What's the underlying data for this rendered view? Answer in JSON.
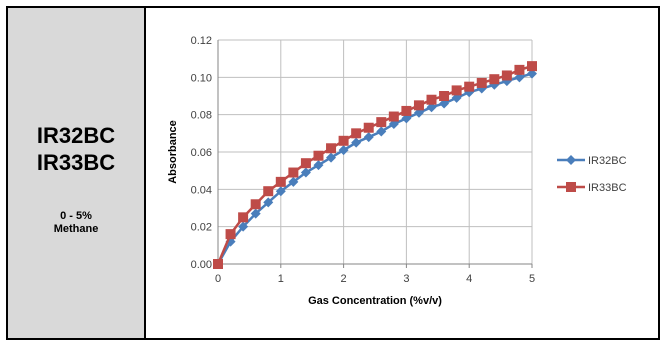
{
  "sidebar": {
    "model_line1": "IR32BC",
    "model_line2": "IR33BC",
    "range_line1": "0 - 5%",
    "range_line2": "Methane"
  },
  "colors": {
    "sidebar_bg": "#d9d9d9",
    "series_ir32bc": "#4a7ebb",
    "series_ir33bc": "#be4b48",
    "gridline": "#bfbfbf"
  },
  "chart_data": {
    "type": "line",
    "xlabel": "Gas Concentration (%v/v)",
    "ylabel": "Absorbance",
    "xlim": [
      0,
      5
    ],
    "ylim": [
      0,
      0.12
    ],
    "xticks": [
      "0",
      "1",
      "2",
      "3",
      "4",
      "5"
    ],
    "yticks": [
      "0.00",
      "0.02",
      "0.04",
      "0.06",
      "0.08",
      "0.10",
      "0.12"
    ],
    "grid": true,
    "legend_position": "right",
    "x": [
      0,
      0.2,
      0.4,
      0.6,
      0.8,
      1.0,
      1.2,
      1.4,
      1.6,
      1.8,
      2.0,
      2.2,
      2.4,
      2.6,
      2.8,
      3.0,
      3.2,
      3.4,
      3.6,
      3.8,
      4.0,
      4.2,
      4.4,
      4.6,
      4.8,
      5.0
    ],
    "series": [
      {
        "name": "IR32BC",
        "marker": "diamond",
        "values": [
          0.0,
          0.012,
          0.02,
          0.027,
          0.033,
          0.039,
          0.044,
          0.049,
          0.053,
          0.057,
          0.061,
          0.065,
          0.068,
          0.071,
          0.075,
          0.078,
          0.081,
          0.084,
          0.086,
          0.089,
          0.092,
          0.094,
          0.096,
          0.098,
          0.1,
          0.102
        ]
      },
      {
        "name": "IR33BC",
        "marker": "square",
        "values": [
          0.0,
          0.016,
          0.025,
          0.032,
          0.039,
          0.044,
          0.049,
          0.054,
          0.058,
          0.062,
          0.066,
          0.07,
          0.073,
          0.076,
          0.079,
          0.082,
          0.085,
          0.088,
          0.09,
          0.093,
          0.095,
          0.097,
          0.099,
          0.101,
          0.104,
          0.106
        ]
      }
    ]
  }
}
